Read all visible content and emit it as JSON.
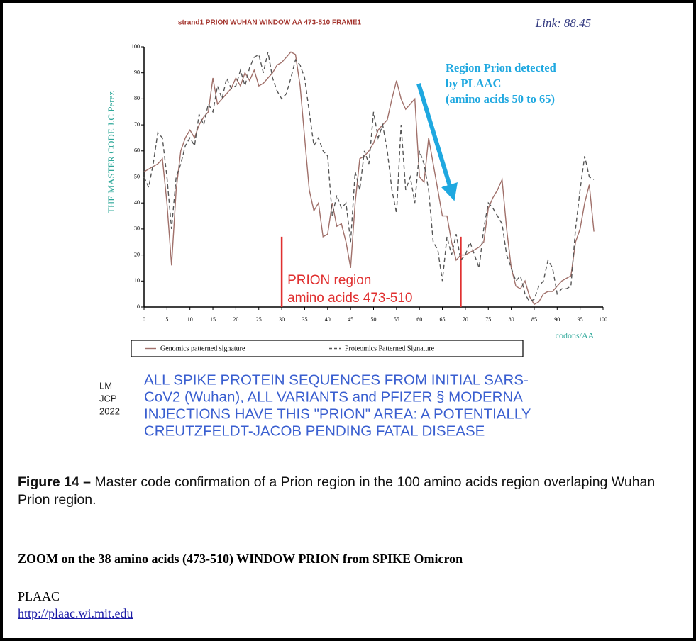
{
  "chart_data": {
    "type": "line",
    "title": "strand1 PRION WUHAN WINDOW AA 473-510 FRAME1",
    "link_label": "Link: 88.45",
    "ylabel": "THE MASTER CODE J.C.Perez",
    "xlabel": "codons/AA",
    "annotation": [
      "Region Prion detected",
      "by PLAAC",
      "(amino acids 50 to 65)"
    ],
    "region_label": [
      "PRION region",
      "amino acids 473-510"
    ],
    "region_bounds": [
      30,
      69
    ],
    "xlim": [
      0,
      100
    ],
    "ylim": [
      0,
      100
    ],
    "xticks": [
      0,
      5,
      10,
      15,
      20,
      25,
      30,
      35,
      40,
      45,
      50,
      55,
      60,
      65,
      70,
      75,
      80,
      85,
      90,
      95,
      100
    ],
    "yticks": [
      0,
      10,
      20,
      30,
      40,
      50,
      60,
      70,
      80,
      90,
      100
    ],
    "x": [
      0,
      1,
      2,
      3,
      4,
      5,
      6,
      7,
      8,
      9,
      10,
      11,
      12,
      13,
      14,
      15,
      16,
      17,
      18,
      19,
      20,
      21,
      22,
      23,
      24,
      25,
      26,
      27,
      28,
      29,
      30,
      31,
      32,
      33,
      34,
      35,
      36,
      37,
      38,
      39,
      40,
      41,
      42,
      43,
      44,
      45,
      46,
      47,
      48,
      49,
      50,
      51,
      52,
      53,
      54,
      55,
      56,
      57,
      58,
      59,
      60,
      61,
      62,
      63,
      64,
      65,
      66,
      67,
      68,
      69,
      70,
      71,
      72,
      73,
      74,
      75,
      76,
      77,
      78,
      79,
      80,
      81,
      82,
      83,
      84,
      85,
      86,
      87,
      88,
      89,
      90,
      91,
      92,
      93,
      94,
      95,
      96,
      97,
      98
    ],
    "series": [
      {
        "name": "Genomics patterned signature",
        "color": "#a0706a",
        "dash": false,
        "values": [
          52,
          53,
          54,
          55,
          57,
          40,
          16,
          45,
          60,
          65,
          68,
          65,
          70,
          73,
          75,
          88,
          78,
          80,
          82,
          84,
          88,
          85,
          90,
          87,
          91,
          85,
          86,
          88,
          90,
          93,
          94,
          96,
          98,
          97,
          85,
          65,
          45,
          37,
          40,
          27,
          28,
          40,
          31,
          32,
          25,
          15,
          40,
          57,
          58,
          60,
          63,
          68,
          70,
          72,
          80,
          87,
          80,
          76,
          78,
          80,
          50,
          48,
          65,
          55,
          45,
          35,
          35,
          25,
          18,
          20,
          20,
          21,
          22,
          23,
          25,
          38,
          42,
          45,
          49,
          30,
          15,
          8,
          7,
          10,
          4,
          1,
          2,
          5,
          6,
          6,
          8,
          10,
          11,
          12,
          25,
          30,
          40,
          47,
          29
        ]
      },
      {
        "name": "Proteomics Patterned Signature",
        "color": "#555555",
        "dash": true,
        "values": [
          50,
          46,
          55,
          67,
          65,
          50,
          30,
          50,
          55,
          62,
          65,
          62,
          74,
          70,
          78,
          75,
          85,
          80,
          88,
          84,
          85,
          91,
          85,
          92,
          96,
          97,
          90,
          98,
          88,
          83,
          80,
          82,
          88,
          95,
          93,
          88,
          75,
          62,
          65,
          60,
          58,
          35,
          43,
          38,
          40,
          25,
          52,
          45,
          60,
          55,
          75,
          65,
          70,
          60,
          45,
          36,
          70,
          45,
          50,
          40,
          60,
          55,
          45,
          25,
          22,
          10,
          27,
          20,
          28,
          18,
          20,
          25,
          20,
          15,
          30,
          40,
          38,
          35,
          32,
          20,
          15,
          10,
          12,
          5,
          2,
          3,
          8,
          10,
          18,
          15,
          5,
          7,
          7,
          8,
          30,
          45,
          58,
          50,
          49
        ]
      }
    ]
  },
  "side_note": [
    "LM",
    "JCP",
    "2022"
  ],
  "banner": [
    "ALL SPIKE PROTEIN SEQUENCES FROM INITIAL SARS-",
    "CoV2 (Wuhan), ALL VARIANTS and PFIZER § MODERNA",
    "INJECTIONS HAVE THIS \"PRION\" AREA: A POTENTIALLY",
    "CREUTZFELDT-JACOB PENDING FATAL DISEASE"
  ],
  "caption": {
    "label": "Figure 14 –",
    "text": " Master code confirmation of a Prion region in the 100 amino acids region overlaping Wuhan Prion region."
  },
  "zoom_heading": "ZOOM on the 38 amino acids (473-510) WINDOW PRION from SPIKE Omicron",
  "source": {
    "name": "PLAAC",
    "url": "http://plaac.wi.mit.edu"
  }
}
